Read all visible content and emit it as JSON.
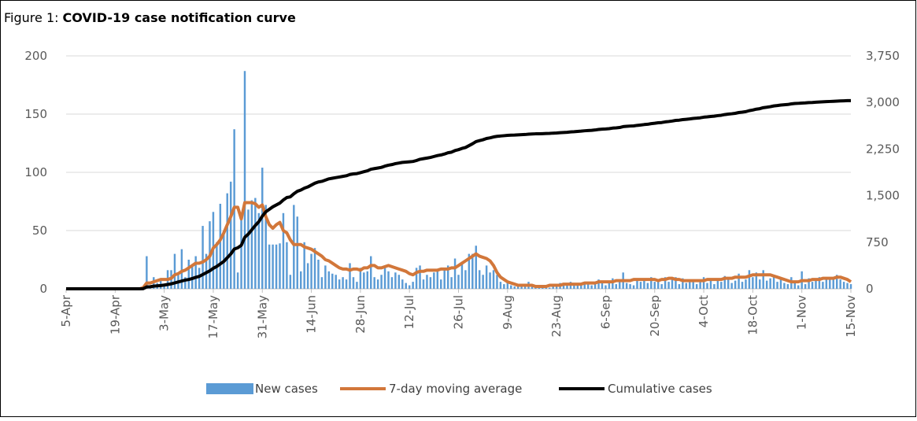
{
  "chart_data": {
    "type": "combo",
    "figure_label": "Figure 1:",
    "title": "COVID-19 case notification curve",
    "categories": [
      "5-Apr",
      null,
      null,
      null,
      null,
      null,
      null,
      null,
      null,
      null,
      null,
      null,
      null,
      null,
      "19-Apr",
      null,
      null,
      null,
      null,
      null,
      null,
      null,
      null,
      null,
      null,
      null,
      null,
      null,
      "3-May",
      null,
      null,
      null,
      null,
      null,
      null,
      null,
      null,
      null,
      null,
      null,
      null,
      null,
      "17-May",
      null,
      null,
      null,
      null,
      null,
      null,
      null,
      null,
      null,
      null,
      null,
      null,
      null,
      "31-May",
      null,
      null,
      null,
      null,
      null,
      null,
      null,
      null,
      null,
      null,
      null,
      null,
      null,
      "14-Jun",
      null,
      null,
      null,
      null,
      null,
      null,
      null,
      null,
      null,
      null,
      null,
      null,
      null,
      "28-Jun",
      null,
      null,
      null,
      null,
      null,
      null,
      null,
      null,
      null,
      null,
      null,
      null,
      null,
      "12-Jul",
      null,
      null,
      null,
      null,
      null,
      null,
      null,
      null,
      null,
      null,
      null,
      null,
      null,
      "26-Jul",
      null,
      null,
      null,
      null,
      null,
      null,
      null,
      null,
      null,
      null,
      null,
      null,
      null,
      "9-Aug",
      null,
      null,
      null,
      null,
      null,
      null,
      null,
      null,
      null,
      null,
      null,
      null,
      null,
      "23-Aug",
      null,
      null,
      null,
      null,
      null,
      null,
      null,
      null,
      null,
      null,
      null,
      null,
      null,
      "6-Sep",
      null,
      null,
      null,
      null,
      null,
      null,
      null,
      null,
      null,
      null,
      null,
      null,
      null,
      "20-Sep",
      null,
      null,
      null,
      null,
      null,
      null,
      null,
      null,
      null,
      null,
      null,
      null,
      null,
      "4-Oct",
      null,
      null,
      null,
      null,
      null,
      null,
      null,
      null,
      null,
      null,
      null,
      null,
      null,
      "18-Oct",
      null,
      null,
      null,
      null,
      null,
      null,
      null,
      null,
      null,
      null,
      null,
      null,
      null,
      "1-Nov",
      null,
      null,
      null,
      null,
      null,
      null,
      null,
      null,
      null,
      null,
      null,
      null,
      null,
      "15-Nov"
    ],
    "series": [
      {
        "name": "New cases",
        "type": "bar",
        "color": "#5b9bd5",
        "values": [
          0,
          0,
          0,
          0,
          0,
          0,
          0,
          0,
          0,
          0,
          0,
          0,
          0,
          0,
          0,
          0,
          0,
          0,
          0,
          0,
          0,
          0,
          2,
          28,
          3,
          10,
          5,
          8,
          4,
          16,
          16,
          30,
          12,
          34,
          10,
          25,
          20,
          28,
          18,
          54,
          30,
          58,
          66,
          40,
          73,
          50,
          82,
          92,
          137,
          14,
          60,
          187,
          68,
          76,
          78,
          65,
          104,
          72,
          38,
          38,
          38,
          39,
          65,
          40,
          12,
          72,
          62,
          15,
          40,
          22,
          30,
          35,
          25,
          10,
          20,
          15,
          13,
          12,
          8,
          10,
          8,
          22,
          10,
          6,
          18,
          14,
          15,
          28,
          10,
          8,
          12,
          20,
          15,
          10,
          14,
          12,
          8,
          5,
          3,
          6,
          18,
          20,
          8,
          12,
          10,
          14,
          15,
          8,
          18,
          20,
          10,
          26,
          12,
          22,
          16,
          30,
          30,
          37,
          16,
          12,
          20,
          14,
          16,
          12,
          6,
          4,
          6,
          3,
          2,
          4,
          3,
          2,
          6,
          2,
          3,
          1,
          2,
          3,
          1,
          4,
          2,
          5,
          3,
          4,
          6,
          3,
          5,
          4,
          6,
          4,
          3,
          6,
          8,
          5,
          3,
          5,
          9,
          4,
          6,
          14,
          5,
          4,
          3,
          8,
          6,
          7,
          5,
          10,
          6,
          8,
          4,
          10,
          6,
          8,
          10,
          4,
          9,
          5,
          6,
          8,
          4,
          6,
          10,
          5,
          7,
          4,
          9,
          6,
          11,
          8,
          5,
          7,
          13,
          6,
          8,
          16,
          10,
          14,
          8,
          16,
          7,
          9,
          12,
          6,
          8,
          5,
          4,
          10,
          6,
          3,
          15,
          4,
          9,
          6,
          8,
          10,
          6,
          10,
          8,
          10,
          12,
          8,
          6,
          5,
          4
        ]
      },
      {
        "name": "7-day moving average",
        "type": "line",
        "color": "#d2773a",
        "values": [
          0,
          0,
          0,
          0,
          0,
          0,
          0,
          0,
          0,
          0,
          0,
          0,
          0,
          0,
          0,
          0,
          0,
          0,
          0,
          0,
          0,
          0,
          1,
          5,
          5,
          6,
          7,
          8,
          8,
          8,
          9,
          12,
          13,
          15,
          16,
          18,
          20,
          22,
          22,
          23,
          25,
          28,
          35,
          38,
          42,
          48,
          55,
          62,
          70,
          70,
          60,
          74,
          74,
          74,
          73,
          70,
          72,
          62,
          55,
          52,
          55,
          57,
          50,
          48,
          42,
          38,
          38,
          38,
          36,
          35,
          34,
          32,
          30,
          28,
          25,
          24,
          22,
          20,
          18,
          17,
          17,
          16,
          17,
          17,
          16,
          18,
          18,
          20,
          20,
          18,
          18,
          19,
          20,
          19,
          18,
          17,
          16,
          15,
          13,
          12,
          14,
          15,
          15,
          16,
          16,
          16,
          16,
          17,
          17,
          17,
          18,
          18,
          20,
          22,
          24,
          26,
          28,
          30,
          28,
          27,
          26,
          24,
          20,
          14,
          10,
          8,
          6,
          5,
          4,
          3,
          3,
          3,
          3,
          3,
          2,
          2,
          2,
          2,
          3,
          3,
          3,
          3,
          4,
          4,
          4,
          4,
          4,
          4,
          5,
          5,
          5,
          5,
          6,
          6,
          6,
          6,
          6,
          7,
          7,
          7,
          7,
          7,
          8,
          8,
          8,
          8,
          8,
          8,
          8,
          7,
          8,
          8,
          9,
          9,
          8,
          8,
          7,
          7,
          7,
          7,
          7,
          7,
          7,
          8,
          8,
          8,
          8,
          8,
          9,
          9,
          9,
          10,
          10,
          10,
          10,
          11,
          12,
          12,
          12,
          12,
          12,
          12,
          11,
          10,
          9,
          8,
          7,
          6,
          6,
          6,
          7,
          7,
          7,
          8,
          8,
          8,
          9,
          9,
          9,
          9,
          10,
          10,
          9,
          8,
          6
        ]
      },
      {
        "name": "Cumulative cases",
        "type": "line",
        "axis": "y2",
        "color": "#000000",
        "values": [
          0,
          0,
          0,
          0,
          0,
          0,
          0,
          0,
          0,
          0,
          0,
          0,
          0,
          0,
          0,
          0,
          0,
          0,
          0,
          0,
          0,
          0,
          2,
          30,
          33,
          43,
          48,
          52,
          60,
          70,
          80,
          95,
          110,
          125,
          140,
          150,
          165,
          185,
          200,
          230,
          260,
          290,
          330,
          360,
          400,
          440,
          500,
          560,
          640,
          660,
          700,
          830,
          880,
          950,
          1020,
          1080,
          1170,
          1240,
          1280,
          1320,
          1350,
          1380,
          1430,
          1470,
          1480,
          1530,
          1570,
          1590,
          1620,
          1640,
          1670,
          1700,
          1720,
          1730,
          1750,
          1770,
          1780,
          1790,
          1800,
          1810,
          1820,
          1840,
          1850,
          1855,
          1870,
          1885,
          1900,
          1925,
          1935,
          1945,
          1955,
          1975,
          1990,
          2000,
          2015,
          2025,
          2035,
          2040,
          2045,
          2050,
          2065,
          2085,
          2095,
          2105,
          2115,
          2130,
          2145,
          2155,
          2170,
          2190,
          2200,
          2225,
          2240,
          2260,
          2275,
          2305,
          2335,
          2370,
          2385,
          2400,
          2420,
          2430,
          2445,
          2455,
          2460,
          2465,
          2470,
          2473,
          2475,
          2479,
          2482,
          2484,
          2490,
          2492,
          2495,
          2496,
          2498,
          2501,
          2502,
          2506,
          2508,
          2513,
          2516,
          2520,
          2526,
          2529,
          2534,
          2538,
          2544,
          2548,
          2551,
          2557,
          2565,
          2570,
          2573,
          2578,
          2587,
          2591,
          2597,
          2611,
          2616,
          2620,
          2623,
          2631,
          2637,
          2644,
          2649,
          2659,
          2665,
          2673,
          2677,
          2687,
          2693,
          2701,
          2711,
          2715,
          2724,
          2729,
          2735,
          2743,
          2747,
          2753,
          2763,
          2768,
          2775,
          2779,
          2788,
          2794,
          2805,
          2813,
          2818,
          2825,
          2838,
          2844,
          2852,
          2868,
          2878,
          2892,
          2900,
          2916,
          2923,
          2932,
          2944,
          2950,
          2958,
          2963,
          2967,
          2977,
          2983,
          2986,
          2990,
          2993,
          2998,
          3000,
          3004,
          3008,
          3010,
          3013,
          3016,
          3019,
          3022,
          3025,
          3027,
          3029,
          3030
        ]
      }
    ],
    "ylim": [
      0,
      200
    ],
    "yticks": [
      0,
      50,
      100,
      150,
      200
    ],
    "y2lim": [
      0,
      3750
    ],
    "y2ticks": [
      0,
      750,
      {
        "value": 1500,
        "label": "1,500"
      },
      {
        "value": 2250,
        "label": "2,250"
      },
      {
        "value": 3000,
        "label": "3,000"
      },
      {
        "value": 3750,
        "label": "3,750"
      }
    ],
    "grid": true,
    "legend": "bottom"
  }
}
